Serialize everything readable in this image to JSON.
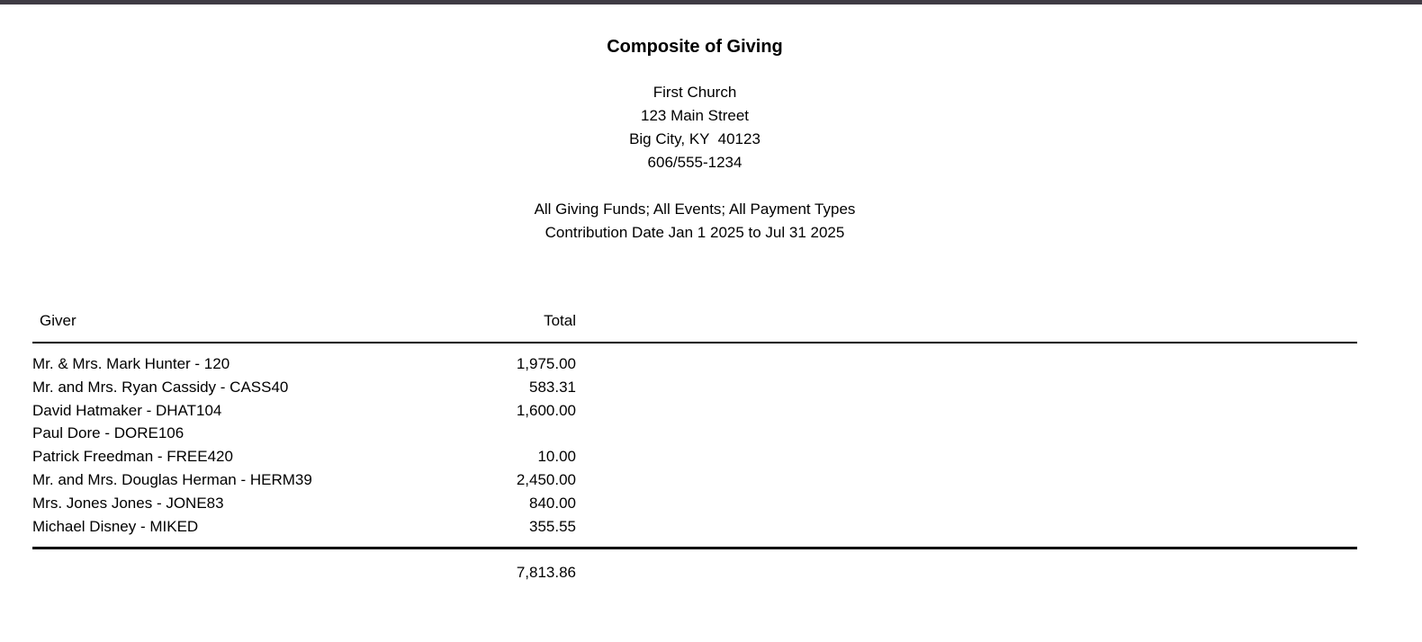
{
  "report": {
    "title": "Composite of Giving",
    "church": {
      "name": "First Church",
      "street": "123 Main Street",
      "city_state_zip": "Big City, KY  40123",
      "phone": "606/555-1234"
    },
    "filters": {
      "scope": "All Giving Funds; All Events; All Payment Types",
      "date_range": "Contribution Date Jan 1 2025 to Jul 31 2025"
    }
  },
  "table": {
    "columns": {
      "giver": "Giver",
      "total": "Total"
    },
    "rows": [
      {
        "giver": "Mr. & Mrs. Mark Hunter - 120",
        "total": "1,975.00"
      },
      {
        "giver": "Mr. and Mrs. Ryan Cassidy - CASS40",
        "total": "583.31"
      },
      {
        "giver": "David Hatmaker - DHAT104",
        "total": "1,600.00"
      },
      {
        "giver": "Paul Dore - DORE106",
        "total": ""
      },
      {
        "giver": "Patrick Freedman - FREE420",
        "total": "10.00"
      },
      {
        "giver": "Mr. and Mrs. Douglas Herman - HERM39",
        "total": "2,450.00"
      },
      {
        "giver": "Mrs. Jones Jones - JONE83",
        "total": "840.00"
      },
      {
        "giver": "Michael Disney - MIKED",
        "total": "355.55"
      }
    ],
    "grand_total": "7,813.86"
  },
  "colors": {
    "top_bar": "#3F3B44",
    "text": "#000000",
    "background": "#FFFFFF"
  }
}
